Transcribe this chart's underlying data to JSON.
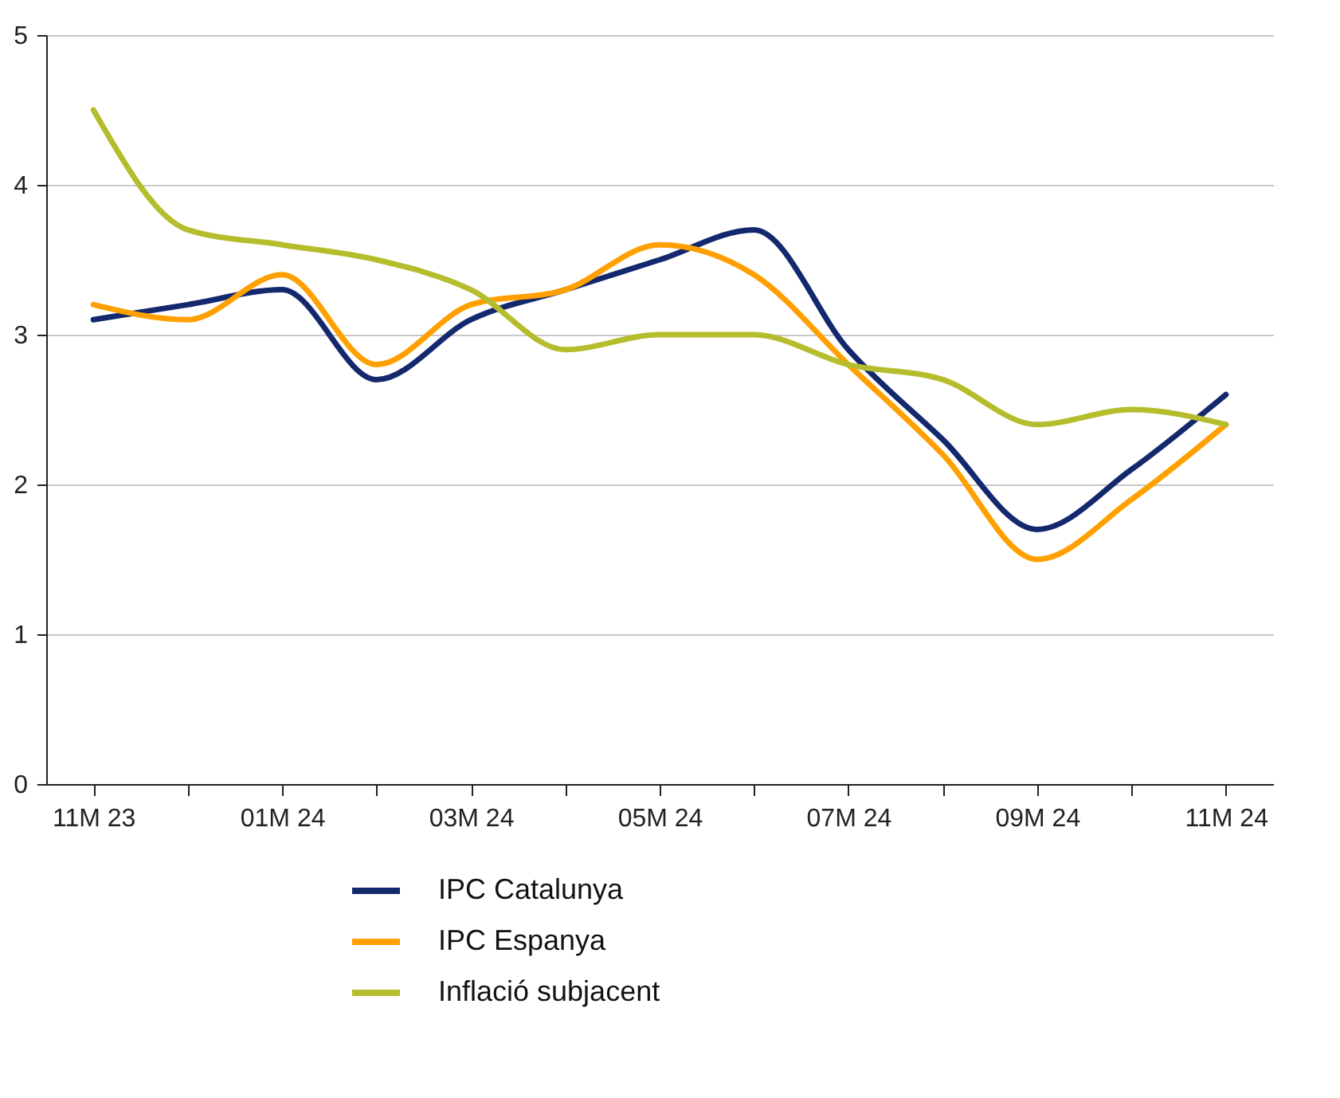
{
  "chart_data": {
    "type": "line",
    "categories": [
      "11M 23",
      null,
      "01M 24",
      null,
      "03M 24",
      null,
      "05M 24",
      null,
      "07M 24",
      null,
      "09M 24",
      null,
      "11M 24"
    ],
    "series": [
      {
        "name": "IPC Catalunya",
        "color": "#14286e",
        "values": [
          3.1,
          3.2,
          3.3,
          2.7,
          3.1,
          3.3,
          3.5,
          3.7,
          2.9,
          2.3,
          1.7,
          2.1,
          2.6
        ]
      },
      {
        "name": "IPC Espanya",
        "color": "#ffa000",
        "values": [
          3.2,
          3.1,
          3.4,
          2.8,
          3.2,
          3.3,
          3.6,
          3.4,
          2.8,
          2.2,
          1.5,
          1.9,
          2.4
        ]
      },
      {
        "name": "Inflació subjacent",
        "color": "#b5bd2d",
        "values": [
          4.5,
          3.7,
          3.6,
          3.5,
          3.3,
          2.9,
          3.0,
          3.0,
          2.8,
          2.7,
          2.4,
          2.5,
          2.4
        ]
      }
    ],
    "ylim": [
      0,
      5
    ],
    "yticks": [
      0,
      1,
      2,
      3,
      4,
      5
    ],
    "grid": "y",
    "legend": "bottom",
    "line_style": "solid",
    "marker": "none"
  }
}
